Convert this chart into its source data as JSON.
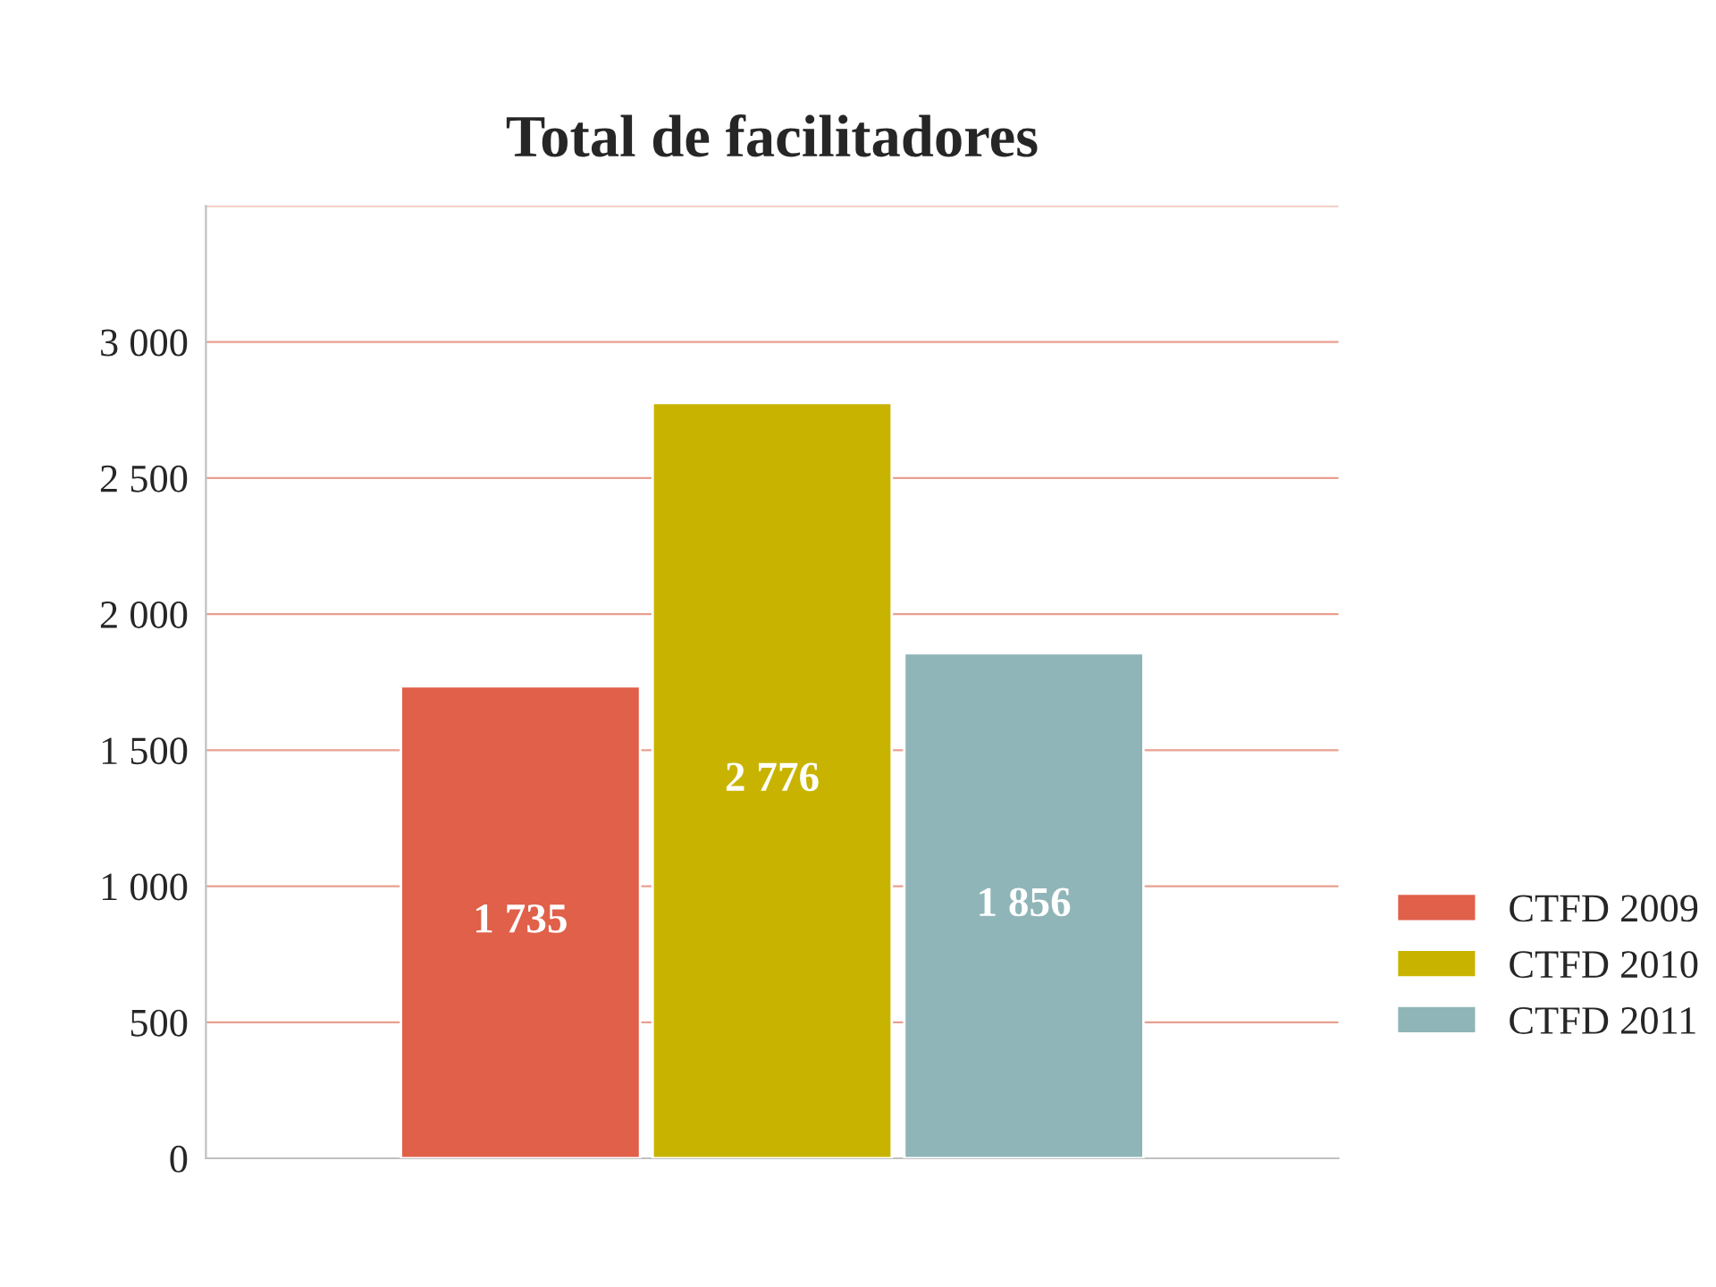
{
  "chart_data": {
    "type": "bar",
    "title": "Total de facilitadores",
    "categories": [
      null
    ],
    "series": [
      {
        "name": "CTFD 2009",
        "color": "#e0604a",
        "values": [
          1735
        ],
        "value_labels": [
          "1 735"
        ]
      },
      {
        "name": "CTFD 2010",
        "color": "#c8b400",
        "values": [
          2776
        ],
        "value_labels": [
          "2 776"
        ]
      },
      {
        "name": "CTFD 2011",
        "color": "#8fb5b8",
        "values": [
          1856
        ],
        "value_labels": [
          "1 856"
        ]
      }
    ],
    "ylim": [
      0,
      3500
    ],
    "yticks": [
      0,
      500,
      {
        "value": 1000,
        "label": "1 000"
      },
      {
        "value": 1500,
        "label": "1 500"
      },
      {
        "value": 2000,
        "label": "2 000"
      },
      {
        "value": 2500,
        "label": "2 500"
      },
      {
        "value": 3000,
        "label": "3 000"
      },
      {
        "value": 3500,
        "label": null
      }
    ],
    "grid": "y",
    "legend": "right"
  }
}
